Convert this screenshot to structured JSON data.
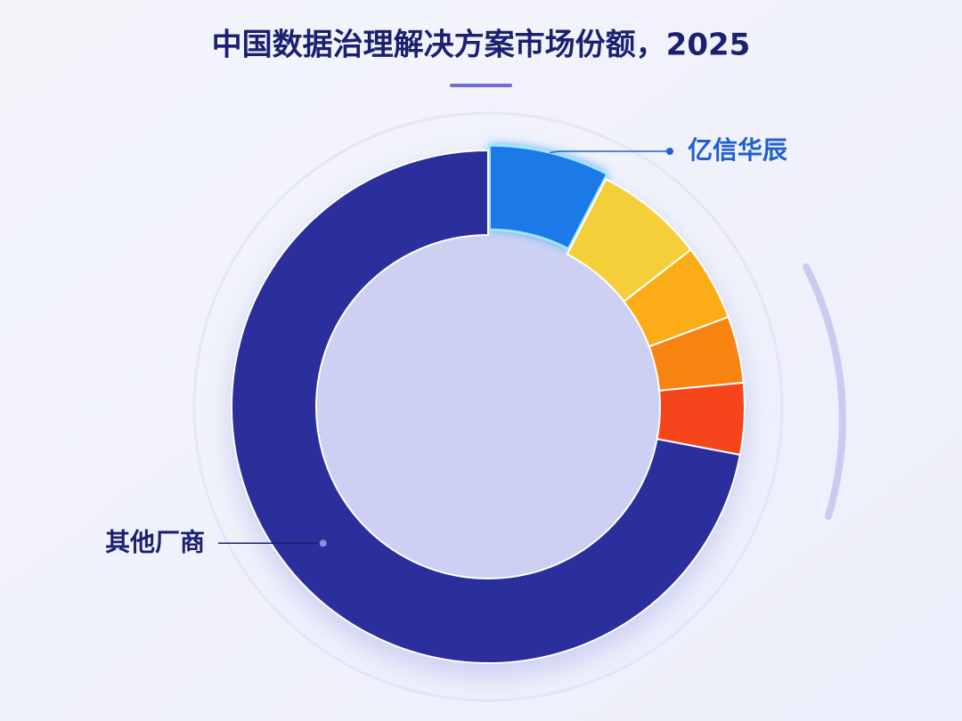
{
  "chart_data": {
    "type": "donut",
    "title": "中国数据治理解决方案市场份额，2025",
    "categories": [
      "亿信华辰",
      null,
      null,
      null,
      null,
      "其他厂商"
    ],
    "values": [
      7.6,
      6.9,
      4.8,
      4.2,
      4.5,
      72.0
    ],
    "colors": [
      "#1a7ae8",
      "#f5cf3a",
      "#fbac16",
      "#f78411",
      "#f6451b",
      "#2a2f9b"
    ],
    "label_colors": [
      "#1f5fd0",
      null,
      null,
      null,
      null,
      "#1b2070"
    ]
  }
}
